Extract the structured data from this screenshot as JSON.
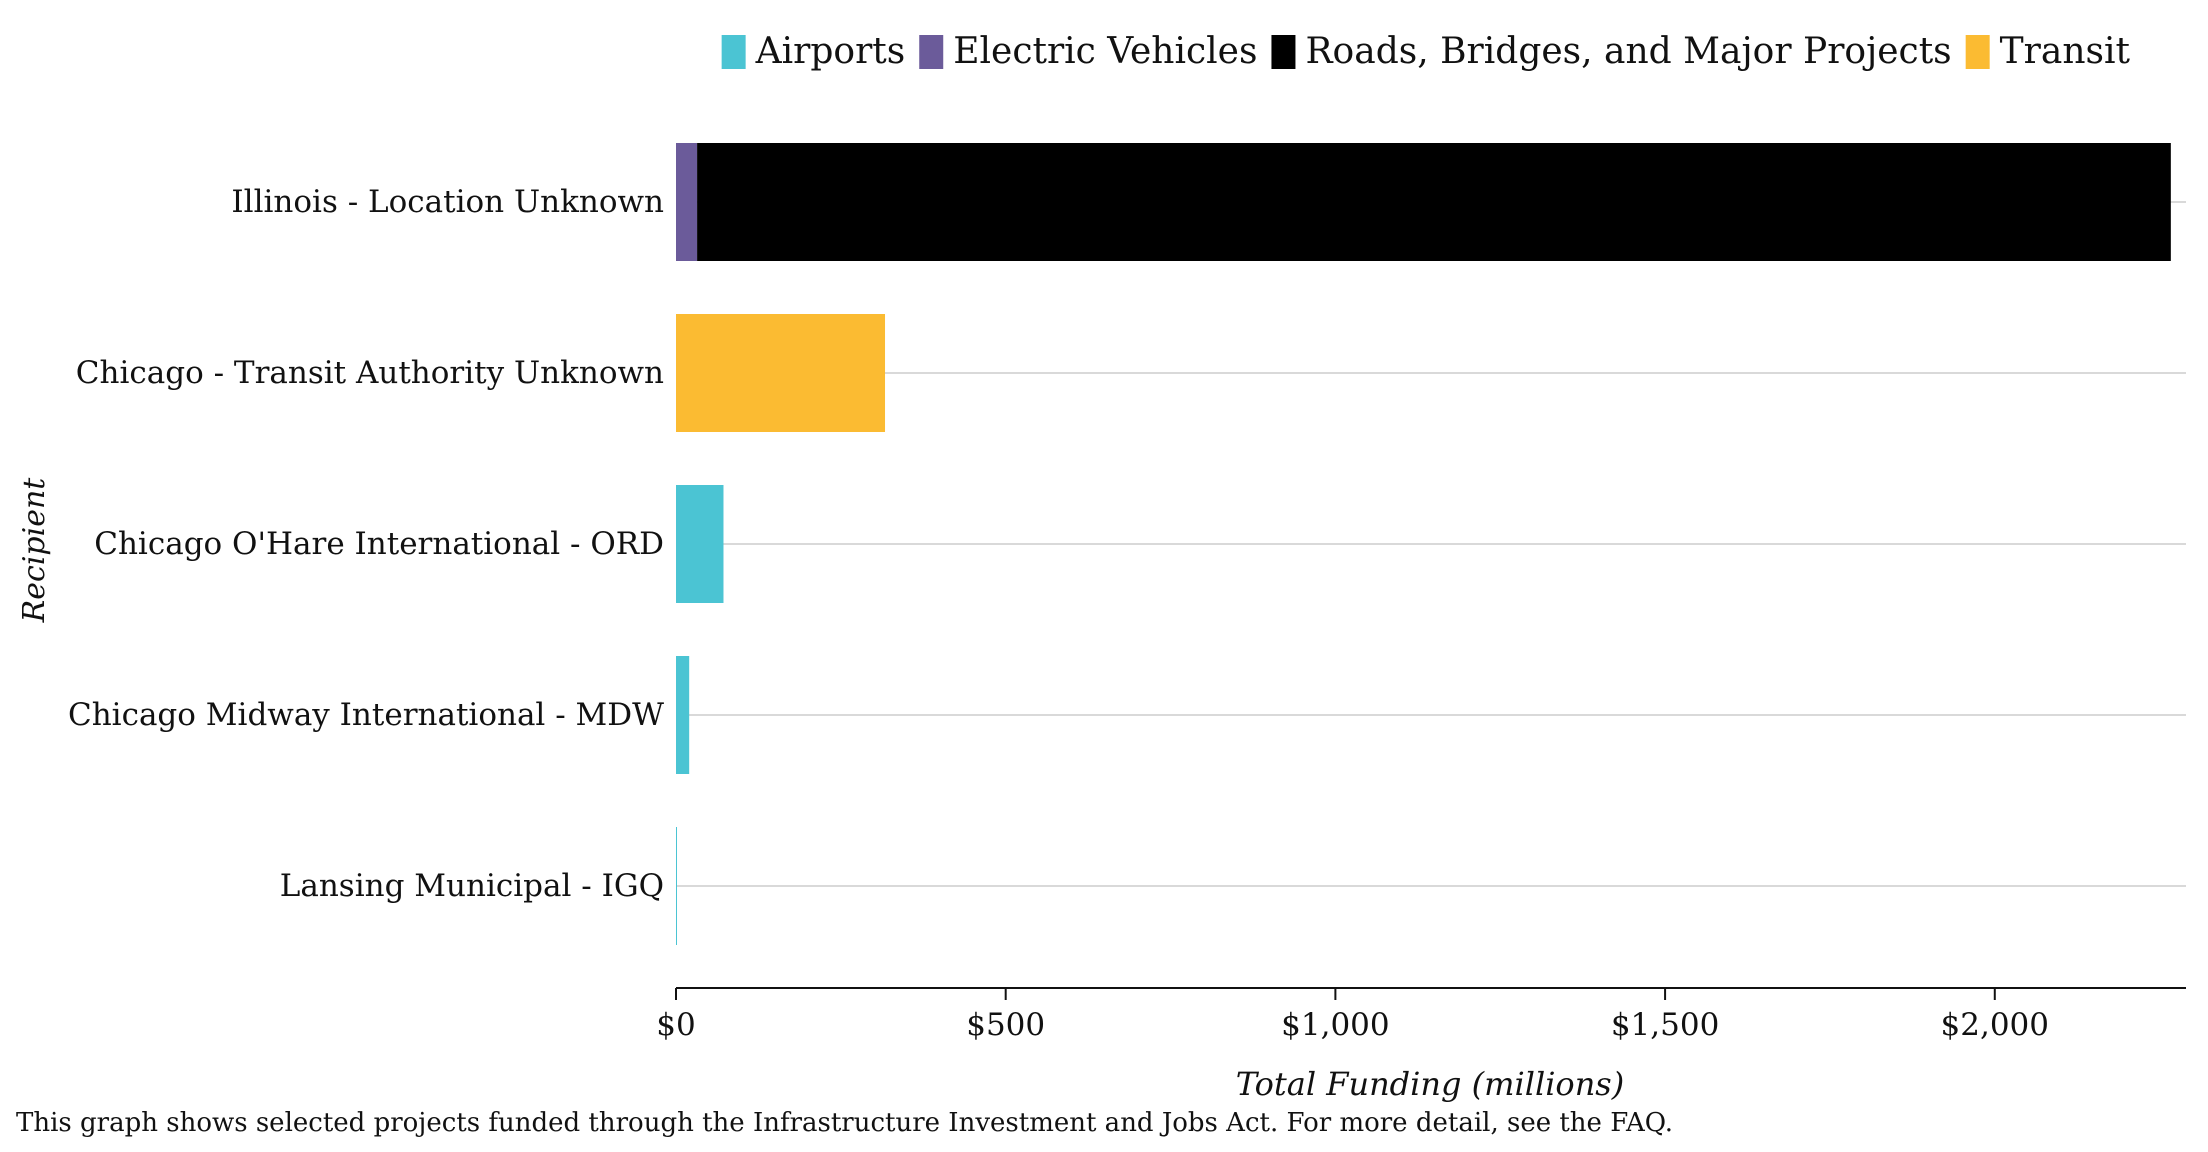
{
  "chart_data": {
    "type": "bar",
    "orientation": "horizontal",
    "stacked": true,
    "categories": [
      "Illinois - Location Unknown",
      "Chicago - Transit Authority Unknown",
      "Chicago O'Hare International - ORD",
      "Chicago Midway International - MDW",
      "Lansing Municipal - IGQ"
    ],
    "series": [
      {
        "name": "Airports",
        "color": "#4bc4d3",
        "values": [
          0,
          0,
          72,
          20,
          0.5
        ]
      },
      {
        "name": "Electric Vehicles",
        "color": "#6b5b9a",
        "values": [
          32,
          0,
          0,
          0,
          0
        ]
      },
      {
        "name": "Roads, Bridges, and Major Projects",
        "color": "#000000",
        "values": [
          2235,
          0,
          0,
          0,
          0
        ]
      },
      {
        "name": "Transit",
        "color": "#fbbb32",
        "values": [
          0,
          317,
          0,
          0,
          0
        ]
      }
    ],
    "xlabel": "Total Funding (millions)",
    "ylabel": "Recipient",
    "xlim": [
      0,
      2290
    ],
    "x_ticks": [
      0,
      500,
      1000,
      1500,
      2000
    ],
    "x_tick_labels": [
      "$0",
      "$500",
      "$1,000",
      "$1,500",
      "$2,000"
    ],
    "grid": "vertical-gridlines-per-category",
    "legend_position": "top"
  },
  "caption": "This graph shows selected projects funded through the Infrastructure Investment and Jobs Act. For more detail, see the FAQ."
}
